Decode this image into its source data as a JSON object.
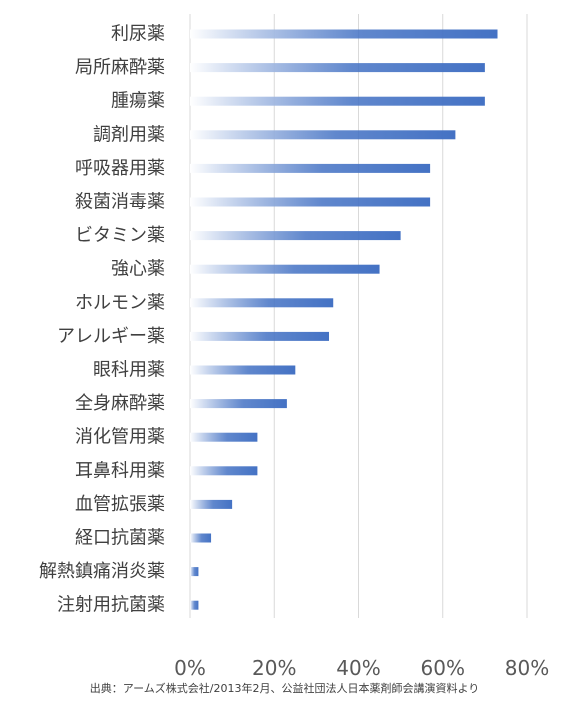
{
  "chart_data": {
    "type": "bar",
    "orientation": "horizontal",
    "categories": [
      "利尿薬",
      "局所麻酔薬",
      "腫瘍薬",
      "調剤用薬",
      "呼吸器用薬",
      "殺菌消毒薬",
      "ビタミン薬",
      "強心薬",
      "ホルモン薬",
      "アレルギー薬",
      "眼科用薬",
      "全身麻酔薬",
      "消化管用薬",
      "耳鼻科用薬",
      "血管拡張薬",
      "経口抗菌薬",
      "解熱鎮痛消炎薬",
      "注射用抗菌薬"
    ],
    "values": [
      0.73,
      0.7,
      0.7,
      0.63,
      0.57,
      0.57,
      0.5,
      0.45,
      0.34,
      0.33,
      0.25,
      0.23,
      0.16,
      0.16,
      0.1,
      0.05,
      0.02,
      0.02
    ],
    "xlim": [
      0,
      0.8
    ],
    "ticks": [
      0,
      0.2,
      0.4,
      0.6,
      0.8
    ],
    "tick_labels": [
      "0%",
      "20%",
      "40%",
      "60%",
      "80%"
    ],
    "grid": true,
    "legend": "none",
    "bar_color": "#4472C4",
    "bar_fade_color": "#FFFFFF",
    "gridline_color": "#D9D9D9",
    "label_color": "#404040",
    "tick_color": "#595959",
    "source": "出典：アームズ株式会社/2013年2月、公益社団法人日本薬剤師会講演資料より"
  }
}
